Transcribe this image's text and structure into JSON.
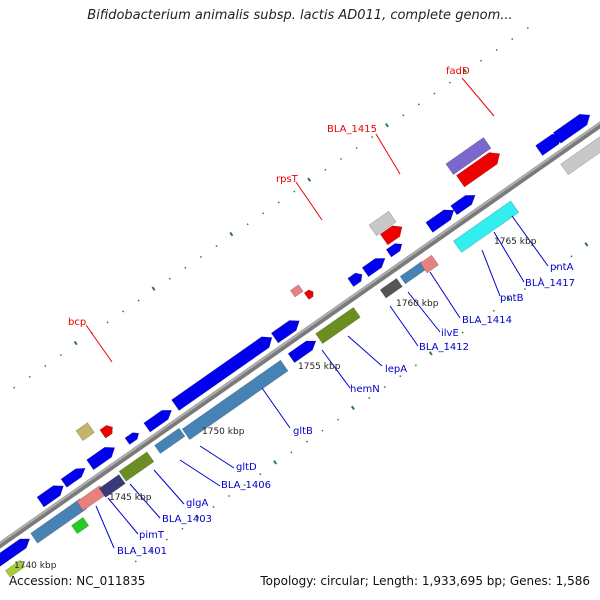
{
  "title": "Bifidobacterium animalis subsp. lactis AD011, complete genom...",
  "footer": {
    "accession": "Accession: NC_011835",
    "summary": "Topology: circular; Length: 1,933,695 bp; Genes: 1,586"
  },
  "colors": {
    "backbone": "#8c8c8c",
    "forward_gene": "#0000ee",
    "reverse_label": "#ee0000",
    "forward_label": "#0000cc",
    "tick": "#2f7f2f"
  },
  "kbp_marks": [
    "1740 kbp",
    "1745 kbp",
    "1750 kbp",
    "1755 kbp",
    "1760 kbp",
    "1765 kbp"
  ],
  "gene_labels_reverse": [
    "bcp",
    "rpsT",
    "BLA_1415",
    "fadD"
  ],
  "gene_labels_forward": [
    "BLA_1401",
    "pimT",
    "BLA_1403",
    "glgA",
    "BLA_1406",
    "gltD",
    "gltB",
    "hemN",
    "lepA",
    "BLA_1412",
    "ilvE",
    "BLA_1414",
    "pntB",
    "BLA_1417",
    "pntA"
  ]
}
